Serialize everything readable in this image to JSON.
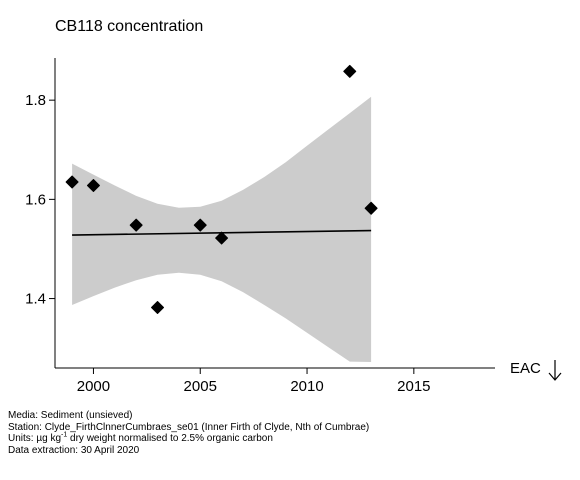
{
  "chart_data": {
    "type": "scatter",
    "title": "CB118 concentration",
    "xlim": [
      1998.2,
      2018.8
    ],
    "ylim": [
      1.26,
      1.885
    ],
    "x_ticks": [
      2000,
      2005,
      2010,
      2015
    ],
    "y_ticks": [
      1.4,
      1.6,
      1.8
    ],
    "y_tick_labels": [
      "1.4",
      "1.6",
      "1.8"
    ],
    "grid": false,
    "points": [
      {
        "x": 1999,
        "y": 1.635
      },
      {
        "x": 2000,
        "y": 1.628
      },
      {
        "x": 2002,
        "y": 1.548
      },
      {
        "x": 2003,
        "y": 1.382
      },
      {
        "x": 2005,
        "y": 1.548
      },
      {
        "x": 2006,
        "y": 1.522
      },
      {
        "x": 2012,
        "y": 1.858
      },
      {
        "x": 2013,
        "y": 1.582
      }
    ],
    "trend": [
      {
        "x": 1999,
        "y": 1.528
      },
      {
        "x": 2013,
        "y": 1.537
      }
    ],
    "confidence_band": {
      "x": [
        1999,
        2000,
        2001,
        2002,
        2003,
        2004,
        2005,
        2006,
        2007,
        2008,
        2009,
        2010,
        2011,
        2012,
        2013
      ],
      "upper": [
        1.672,
        1.65,
        1.628,
        1.607,
        1.591,
        1.583,
        1.585,
        1.597,
        1.619,
        1.645,
        1.675,
        1.708,
        1.741,
        1.774,
        1.807
      ],
      "lower": [
        1.387,
        1.405,
        1.422,
        1.437,
        1.448,
        1.452,
        1.448,
        1.435,
        1.413,
        1.387,
        1.36,
        1.331,
        1.302,
        1.273,
        1.272
      ]
    },
    "colors": {
      "band": "#cccccc",
      "points": "#000000",
      "trend": "#000000"
    }
  },
  "eac_label": "EAC",
  "footer": {
    "media": "Media: Sediment (unsieved)",
    "station": "Station: Clyde_FirthClnnerCumbraes_se01 (Inner Firth of Clyde, Nth of Cumbrae)",
    "units_prefix": "Units:  µg kg",
    "units_sup": "-1",
    "units_suffix": " dry weight normalised to 2.5% organic carbon",
    "extraction": "Data extraction: 30 April 2020"
  }
}
